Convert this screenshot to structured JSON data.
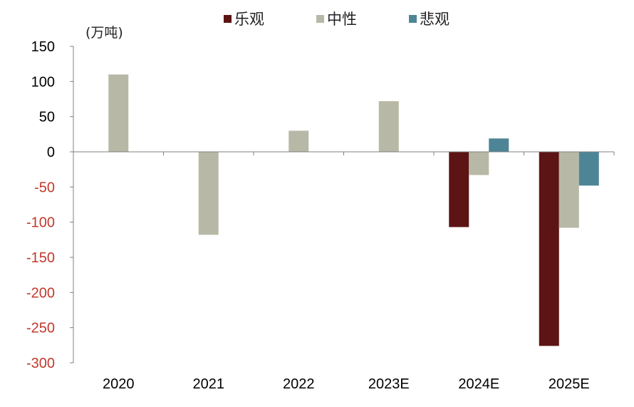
{
  "chart_data": {
    "type": "bar",
    "unit_label": "(万吨)",
    "categories": [
      "2020",
      "2021",
      "2022",
      "2023E",
      "2024E",
      "2025E"
    ],
    "series": [
      {
        "name": "乐观",
        "color": "#5c1414",
        "values": [
          null,
          null,
          null,
          null,
          -107,
          -276
        ]
      },
      {
        "name": "中性",
        "color": "#b8b8a6",
        "values": [
          110,
          -118,
          30,
          72,
          -33,
          -108
        ]
      },
      {
        "name": "悲观",
        "color": "#4e8596",
        "values": [
          null,
          null,
          null,
          null,
          19,
          -48
        ]
      }
    ],
    "ylim": [
      -300,
      150
    ],
    "yticks": [
      150,
      100,
      50,
      0,
      -50,
      -100,
      -150,
      -200,
      -250,
      -300
    ],
    "negative_tick_color": "#c0392b",
    "positive_tick_color": "#000000",
    "legend_position": "top-center",
    "grid": false
  }
}
